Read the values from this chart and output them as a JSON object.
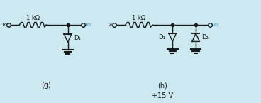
{
  "bg_color": "#cce8f0",
  "line_color": "#1a1a1a",
  "cyan_color": "#3399bb",
  "fig_width": 3.68,
  "fig_height": 1.45,
  "label_g": "(g)",
  "label_h": "(h)",
  "label_15v": "+15 V",
  "res_label": "1 kΩ",
  "vi_label": "vᵢ",
  "vo_label": "v₀",
  "D1_label": "D₁",
  "D2_label": "D₂",
  "xlim": [
    0,
    10
  ],
  "ylim": [
    0,
    4.2
  ]
}
